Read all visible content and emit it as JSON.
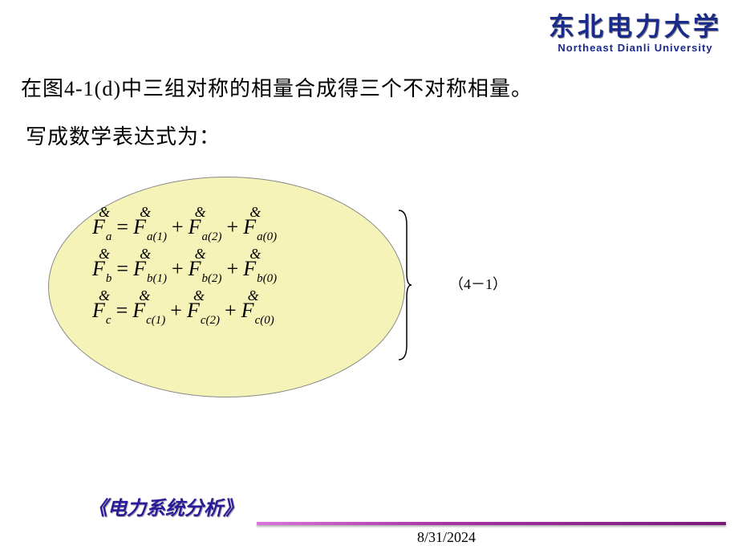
{
  "logo": {
    "cn": "东北电力大学",
    "en": "Northeast Dianli University",
    "color": "#1a2a8a"
  },
  "text": {
    "line1": "在图4-1(d)中三组对称的相量合成得三个不对称相量。",
    "line2": "写成数学表达式为：",
    "fontsize": 26
  },
  "ellipse": {
    "fill": "#f5f3b8",
    "border": "#888888"
  },
  "equations": {
    "label": "（4－1）",
    "symbol_main": "F",
    "symbol_accent": "&",
    "rows": [
      {
        "lhs_sub": "a",
        "rhs_subs": [
          "a(1)",
          "a(2)",
          "a(0)"
        ]
      },
      {
        "lhs_sub": "b",
        "rhs_subs": [
          "b(1)",
          "b(2)",
          "b(0)"
        ]
      },
      {
        "lhs_sub": "c",
        "rhs_subs": [
          "c(1)",
          "c(2)",
          "c(0)"
        ]
      }
    ],
    "font_family": "Times New Roman",
    "font_size": 26
  },
  "footer": {
    "title": "《电力系统分析》",
    "title_color": "#2a1a9a",
    "line_gradient_from": "#d976d9",
    "line_gradient_to": "#7a1a7a",
    "date": "8/31/2024"
  }
}
